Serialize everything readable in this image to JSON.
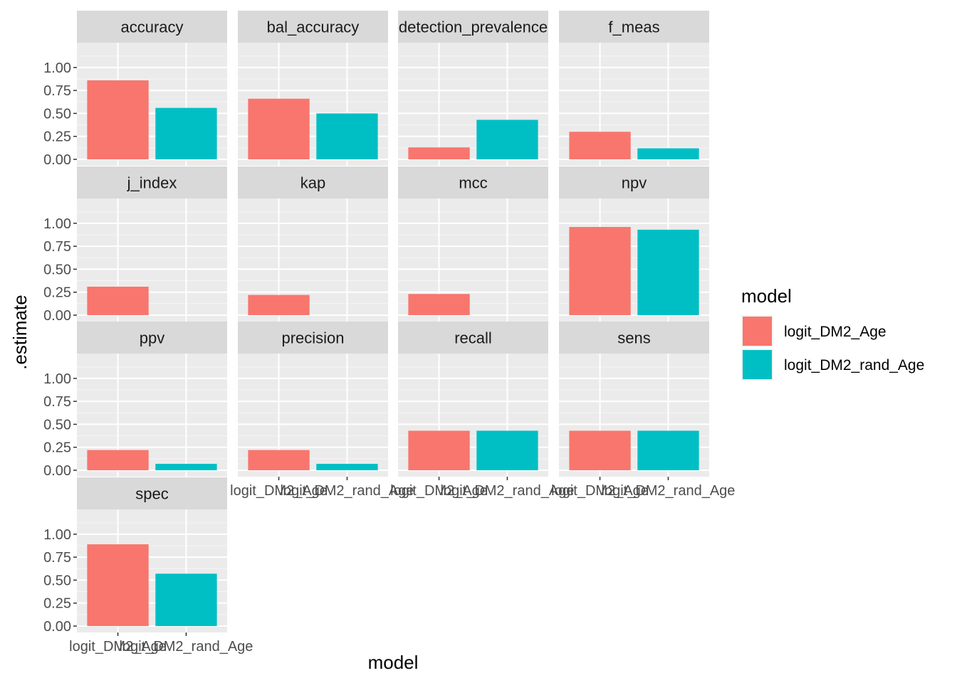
{
  "chart_data": {
    "type": "bar",
    "facet_layout": "wrap 4 columns",
    "xlabel": "model",
    "ylabel": ".estimate",
    "ylim": [
      -0.07,
      1.27
    ],
    "yticks": [
      0,
      0.25,
      0.5,
      0.75,
      1.0
    ],
    "ytick_labels": [
      "0.00",
      "0.25",
      "0.50",
      "0.75",
      "1.00"
    ],
    "categories": [
      "logit_DM2_Age",
      "logit_DM2_rand_Age"
    ],
    "legend": {
      "title": "model",
      "placement": "right",
      "entries": [
        {
          "label": "logit_DM2_Age",
          "color": "#F8766D"
        },
        {
          "label": "logit_DM2_rand_Age",
          "color": "#00BFC4"
        }
      ]
    },
    "grid": true,
    "panel_background": "#EBEBEB",
    "strip_background": "#D9D9D9",
    "panels": [
      {
        "metric": "accuracy",
        "values": [
          0.86,
          0.56
        ]
      },
      {
        "metric": "bal_accuracy",
        "values": [
          0.66,
          0.5
        ]
      },
      {
        "metric": "detection_prevalence",
        "values": [
          0.13,
          0.43
        ]
      },
      {
        "metric": "f_meas",
        "values": [
          0.3,
          0.12
        ]
      },
      {
        "metric": "j_index",
        "values": [
          0.31,
          0.0
        ]
      },
      {
        "metric": "kap",
        "values": [
          0.22,
          0.0
        ]
      },
      {
        "metric": "mcc",
        "values": [
          0.23,
          0.0
        ]
      },
      {
        "metric": "npv",
        "values": [
          0.96,
          0.93
        ]
      },
      {
        "metric": "ppv",
        "values": [
          0.22,
          0.07
        ]
      },
      {
        "metric": "precision",
        "values": [
          0.22,
          0.07
        ]
      },
      {
        "metric": "recall",
        "values": [
          0.43,
          0.43
        ]
      },
      {
        "metric": "sens",
        "values": [
          0.43,
          0.43
        ]
      },
      {
        "metric": "spec",
        "values": [
          0.89,
          0.57
        ]
      }
    ]
  }
}
